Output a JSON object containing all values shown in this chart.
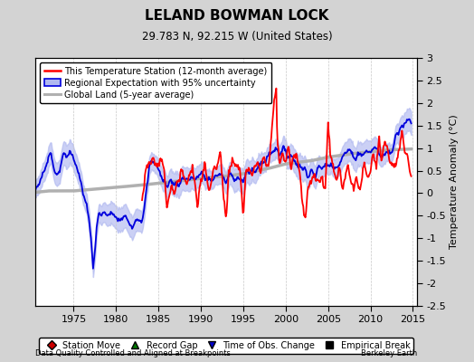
{
  "title": "LELAND BOWMAN LOCK",
  "subtitle": "29.783 N, 92.215 W (United States)",
  "ylabel": "Temperature Anomaly (°C)",
  "xlabel_left": "Data Quality Controlled and Aligned at Breakpoints",
  "xlabel_right": "Berkeley Earth",
  "xlim": [
    1970.5,
    2015.5
  ],
  "ylim": [
    -2.5,
    3.0
  ],
  "yticks": [
    -2.5,
    -2.0,
    -1.5,
    -1.0,
    -0.5,
    0.0,
    0.5,
    1.0,
    1.5,
    2.0,
    2.5,
    3.0
  ],
  "xticks": [
    1975,
    1980,
    1985,
    1990,
    1995,
    2000,
    2005,
    2010,
    2015
  ],
  "background_color": "#d3d3d3",
  "plot_bg_color": "#ffffff",
  "grid_color": "#c8c8c8",
  "station_color": "#ff0000",
  "regional_color": "#0000dd",
  "regional_fill_color": "#b0b8f0",
  "global_color": "#b0b0b0",
  "global_linewidth": 2.5,
  "regional_linewidth": 1.3,
  "station_linewidth": 1.3,
  "legend_items": [
    "This Temperature Station (12-month average)",
    "Regional Expectation with 95% uncertainty",
    "Global Land (5-year average)"
  ],
  "bottom_legend_items": [
    {
      "label": "Station Move",
      "marker": "D",
      "color": "#cc0000"
    },
    {
      "label": "Record Gap",
      "marker": "^",
      "color": "#007700"
    },
    {
      "label": "Time of Obs. Change",
      "marker": "v",
      "color": "#0000cc"
    },
    {
      "label": "Empirical Break",
      "marker": "s",
      "color": "#000000"
    }
  ]
}
